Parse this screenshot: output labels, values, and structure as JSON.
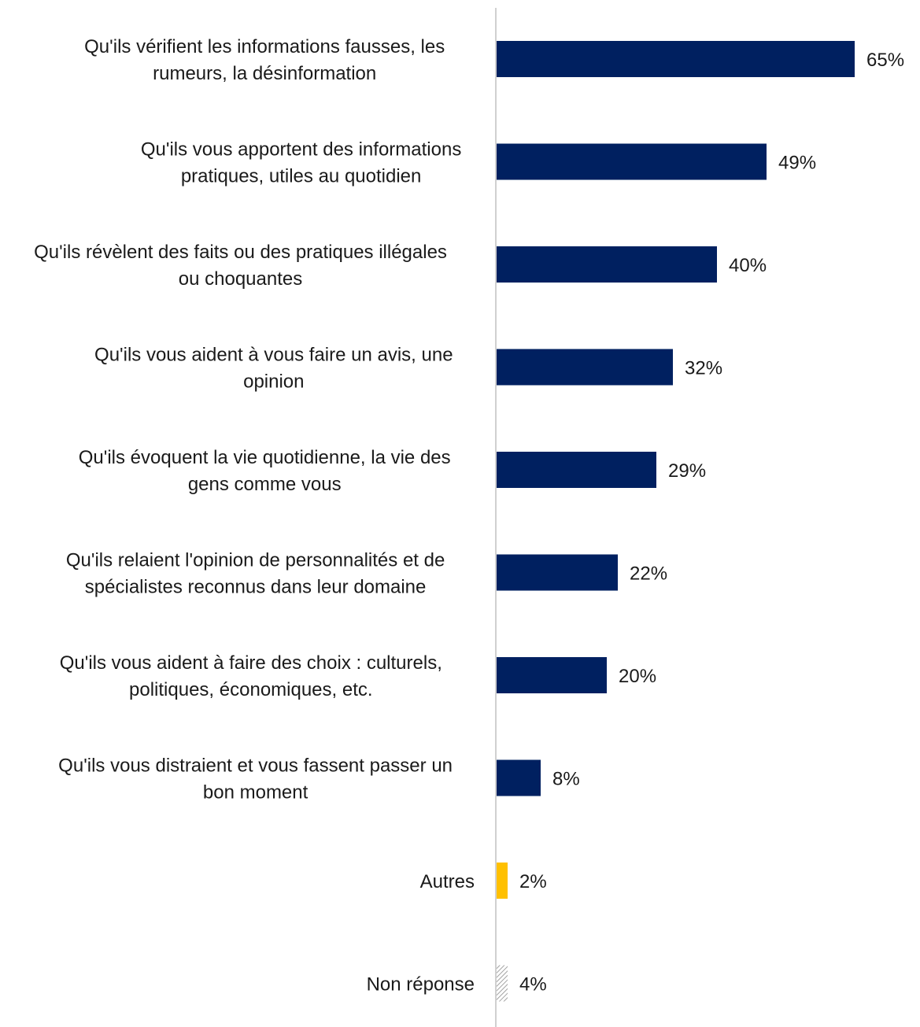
{
  "chart_data": {
    "type": "bar",
    "orientation": "horizontal",
    "title": "",
    "xlabel": "",
    "ylabel": "",
    "grid": false,
    "legend": "none",
    "xlim": [
      0,
      70
    ],
    "colors": {
      "primary": "#002060",
      "other": "#FFC000",
      "no_answer_hatch": "#9a9a9a",
      "axis": "#d0d0d0"
    },
    "categories": [
      [
        "Qu'ils vérifient les informations fausses, les",
        "rumeurs, la désinformation"
      ],
      [
        "Qu'ils vous apportent des informations",
        "pratiques, utiles au quotidien"
      ],
      [
        "Qu'ils révèlent des faits ou des pratiques illégales",
        "ou choquantes"
      ],
      [
        "Qu'ils vous aident à vous faire un avis, une",
        "opinion"
      ],
      [
        "Qu'ils évoquent la vie quotidienne, la vie des",
        "gens comme vous"
      ],
      [
        "Qu'ils relaient l'opinion de personnalités et de",
        "spécialistes reconnus dans leur domaine"
      ],
      [
        "Qu'ils vous aident à faire des choix : culturels,",
        "politiques, économiques, etc."
      ],
      [
        "Qu'ils vous distraient et vous fassent passer un",
        "bon moment"
      ],
      [
        "Autres"
      ],
      [
        "Non réponse"
      ]
    ],
    "values": [
      65,
      49,
      40,
      32,
      29,
      22,
      20,
      8,
      2,
      4
    ],
    "value_labels": [
      "65%",
      "49%",
      "40%",
      "32%",
      "29%",
      "22%",
      "20%",
      "8%",
      "2%",
      "4%"
    ],
    "bar_styles": [
      "primary",
      "primary",
      "primary",
      "primary",
      "primary",
      "primary",
      "primary",
      "primary",
      "other",
      "hatched"
    ]
  }
}
